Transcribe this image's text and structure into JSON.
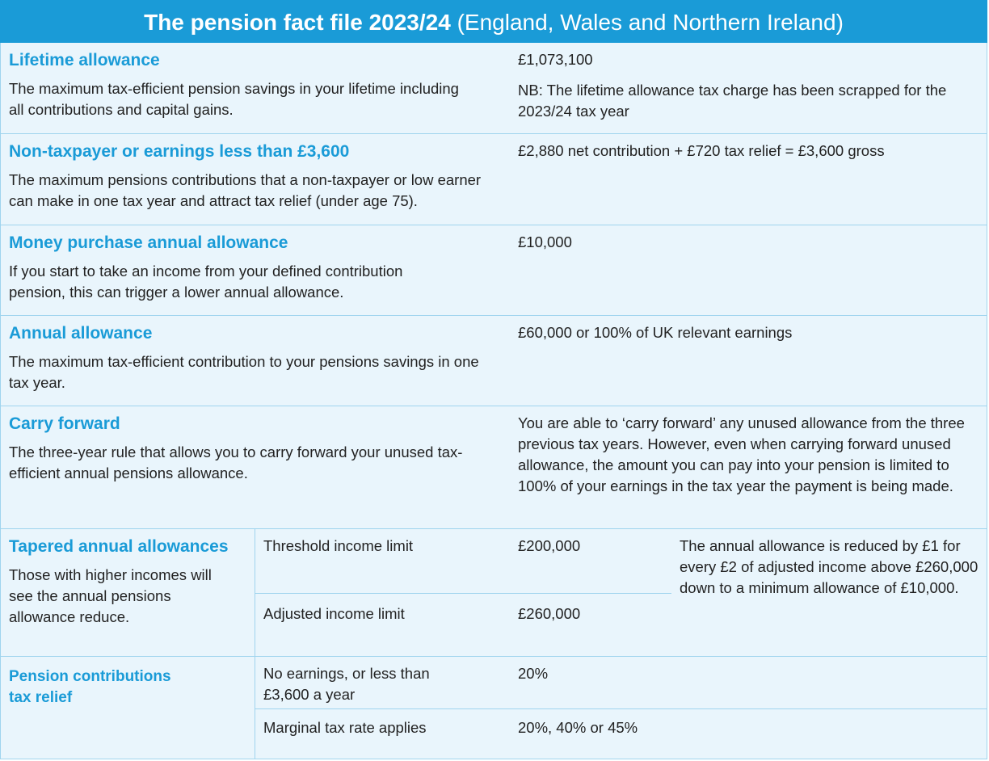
{
  "header": {
    "title": "The pension fact file 2023/24",
    "subtitle": "(England, Wales and Northern Ireland)"
  },
  "rows": [
    {
      "heading": "Lifetime allowance",
      "description": "The maximum tax-efficient pension savings in your lifetime including all contributions and capital gains.",
      "value": "£1,073,100",
      "note": "NB: The lifetime allowance tax charge has been scrapped for the 2023/24 tax year"
    },
    {
      "heading": "Non-taxpayer or earnings less than £3,600",
      "description": "The maximum pensions contributions that a non-taxpayer or low earner can make in one tax year and attract tax relief (under age 75).",
      "value": "£2,880 net contribution + £720 tax relief = £3,600 gross"
    },
    {
      "heading": "Money purchase annual allowance",
      "description": "If you start to take an income from your defined contribution pension, this can trigger a lower annual allowance.",
      "value": "£10,000"
    },
    {
      "heading": "Annual allowance",
      "description": "The maximum tax-efficient contribution to your pensions savings in one tax year.",
      "value": "£60,000 or 100% of UK relevant earnings"
    },
    {
      "heading": "Carry forward",
      "description": "The three-year rule that allows you to carry forward your unused tax-efficient annual pensions allowance.",
      "value": "You are able to ‘carry forward’ any unused allowance from the three previous tax years. However, even when carrying forward unused allowance, the amount you can pay into your pension is limited to 100% of your earnings in the tax year the payment is being made."
    }
  ],
  "tapered": {
    "heading": "Tapered annual allowances",
    "description": "Those with higher incomes will see the annual pensions allowance reduce.",
    "limits": [
      {
        "label": "Threshold income limit",
        "value": "£200,000"
      },
      {
        "label": "Adjusted income limit",
        "value": "£260,000"
      }
    ],
    "note": "The annual allowance is reduced by £1 for every £2 of adjusted income above £260,000 down to a minimum allowance of £10,000."
  },
  "relief": {
    "heading": "Pension contributions tax relief",
    "rows": [
      {
        "label": "No earnings, or less than £3,600 a year",
        "value": "20%"
      },
      {
        "label": "Marginal tax rate applies",
        "value": "20%, 40% or 45%"
      }
    ]
  }
}
